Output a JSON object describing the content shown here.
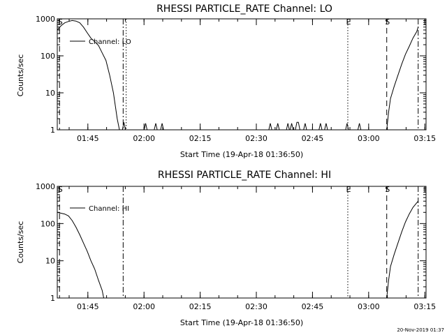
{
  "footer_stamp": "20-Nov-2019 01:37",
  "chart_data": [
    {
      "type": "line",
      "title": "RHESSI PARTICLE_RATE Channel: LO",
      "xlabel": "Start Time (19-Apr-18 01:36:50)",
      "ylabel": "Counts/sec",
      "yscale": "log",
      "xlim": [
        0,
        98.5
      ],
      "ylim": [
        1,
        1000
      ],
      "xticks": [
        {
          "x": 8.17,
          "label": "01:45"
        },
        {
          "x": 23.17,
          "label": "02:00"
        },
        {
          "x": 38.17,
          "label": "02:15"
        },
        {
          "x": 53.17,
          "label": "02:30"
        },
        {
          "x": 68.17,
          "label": "02:45"
        },
        {
          "x": 83.17,
          "label": "03:00"
        },
        {
          "x": 98.17,
          "label": "03:15"
        }
      ],
      "yticks": [
        {
          "y": 1,
          "label": "1"
        },
        {
          "y": 10,
          "label": "10"
        },
        {
          "y": 100,
          "label": "100"
        },
        {
          "y": 1000,
          "label": "1000"
        }
      ],
      "legend": {
        "label": "Channel: LO",
        "position": "top-left"
      },
      "grid": false,
      "markers": [
        {
          "x": 0.6,
          "style": "dashed",
          "label": "S"
        },
        {
          "x": 17.6,
          "style": "dashdot",
          "label": ""
        },
        {
          "x": 18.4,
          "style": "dotted",
          "label": ""
        },
        {
          "x": 77.6,
          "style": "dotted",
          "label": "E"
        },
        {
          "x": 88.0,
          "style": "dashed",
          "label": "S"
        },
        {
          "x": 96.4,
          "style": "dashdot",
          "label": ""
        }
      ],
      "series": [
        {
          "values": [
            [
              0,
              500
            ],
            [
              1,
              650
            ],
            [
              2,
              780
            ],
            [
              3,
              850
            ],
            [
              4,
              900
            ],
            [
              5,
              870
            ],
            [
              6,
              780
            ],
            [
              7,
              600
            ],
            [
              8,
              420
            ],
            [
              9,
              300
            ],
            [
              10,
              240
            ],
            [
              11,
              190
            ],
            [
              12,
              120
            ],
            [
              13,
              75
            ],
            [
              14,
              30
            ],
            [
              15,
              10
            ],
            [
              16,
              2
            ],
            [
              16.6,
              1
            ],
            [
              17.4,
              1
            ],
            [
              17.8,
              1.6
            ],
            [
              18.2,
              1
            ],
            [
              23.2,
              1
            ],
            [
              23.6,
              1.5
            ],
            [
              24.0,
              1
            ],
            [
              25.9,
              1
            ],
            [
              26.3,
              1.5
            ],
            [
              26.7,
              1
            ],
            [
              27.6,
              1
            ],
            [
              28.0,
              1.5
            ],
            [
              28.4,
              1
            ],
            [
              56.5,
              1
            ],
            [
              56.9,
              1.5
            ],
            [
              57.3,
              1
            ],
            [
              58.5,
              1
            ],
            [
              58.9,
              1.5
            ],
            [
              59.3,
              1
            ],
            [
              61.2,
              1
            ],
            [
              61.6,
              1.5
            ],
            [
              62.0,
              1
            ],
            [
              62.2,
              1
            ],
            [
              62.6,
              1.5
            ],
            [
              63.0,
              1
            ],
            [
              63.6,
              1
            ],
            [
              64.0,
              1.6
            ],
            [
              64.4,
              1.6
            ],
            [
              64.8,
              1
            ],
            [
              65.8,
              1
            ],
            [
              66.2,
              1.5
            ],
            [
              66.6,
              1
            ],
            [
              69.9,
              1
            ],
            [
              70.3,
              1.5
            ],
            [
              70.7,
              1
            ],
            [
              71.4,
              1
            ],
            [
              71.8,
              1.5
            ],
            [
              72.2,
              1
            ],
            [
              77.0,
              1
            ],
            [
              77.4,
              1.5
            ],
            [
              77.8,
              1
            ],
            [
              80.3,
              1
            ],
            [
              80.7,
              1.5
            ],
            [
              81.1,
              1
            ],
            [
              88.0,
              1
            ],
            [
              88.5,
              3
            ],
            [
              89,
              7
            ],
            [
              90,
              15
            ],
            [
              91,
              30
            ],
            [
              92,
              60
            ],
            [
              93,
              110
            ],
            [
              94,
              180
            ],
            [
              95,
              300
            ],
            [
              96,
              450
            ],
            [
              96.4,
              600
            ]
          ]
        }
      ]
    },
    {
      "type": "line",
      "title": "RHESSI PARTICLE_RATE Channel: HI",
      "xlabel": "Start Time (19-Apr-18 01:36:50)",
      "ylabel": "Counts/sec",
      "yscale": "log",
      "xlim": [
        0,
        98.5
      ],
      "ylim": [
        1,
        1000
      ],
      "xticks": [
        {
          "x": 8.17,
          "label": "01:45"
        },
        {
          "x": 23.17,
          "label": "02:00"
        },
        {
          "x": 38.17,
          "label": "02:15"
        },
        {
          "x": 53.17,
          "label": "02:30"
        },
        {
          "x": 68.17,
          "label": "02:45"
        },
        {
          "x": 83.17,
          "label": "03:00"
        },
        {
          "x": 98.17,
          "label": "03:15"
        }
      ],
      "yticks": [
        {
          "y": 1,
          "label": "1"
        },
        {
          "y": 10,
          "label": "10"
        },
        {
          "y": 100,
          "label": "100"
        },
        {
          "y": 1000,
          "label": "1000"
        }
      ],
      "legend": {
        "label": "Channel: HI",
        "position": "top-left"
      },
      "grid": false,
      "markers": [
        {
          "x": 0.6,
          "style": "dashed",
          "label": "S"
        },
        {
          "x": 17.6,
          "style": "dashdot",
          "label": ""
        },
        {
          "x": 77.6,
          "style": "dotted",
          "label": "E"
        },
        {
          "x": 88.0,
          "style": "dashed",
          "label": "S"
        },
        {
          "x": 96.4,
          "style": "dashdot",
          "label": ""
        }
      ],
      "series": [
        {
          "values": [
            [
              0,
              200
            ],
            [
              1,
              190
            ],
            [
              2,
              180
            ],
            [
              3,
              160
            ],
            [
              4,
              120
            ],
            [
              5,
              80
            ],
            [
              6,
              50
            ],
            [
              7,
              30
            ],
            [
              8,
              18
            ],
            [
              9,
              10
            ],
            [
              10,
              6
            ],
            [
              11,
              3
            ],
            [
              12,
              1.6
            ],
            [
              12.4,
              1
            ],
            [
              88.0,
              1
            ],
            [
              88.5,
              3
            ],
            [
              89,
              7
            ],
            [
              90,
              15
            ],
            [
              91,
              30
            ],
            [
              92,
              60
            ],
            [
              93,
              110
            ],
            [
              94,
              180
            ],
            [
              95,
              270
            ],
            [
              96,
              360
            ],
            [
              96.4,
              400
            ]
          ]
        }
      ]
    }
  ]
}
